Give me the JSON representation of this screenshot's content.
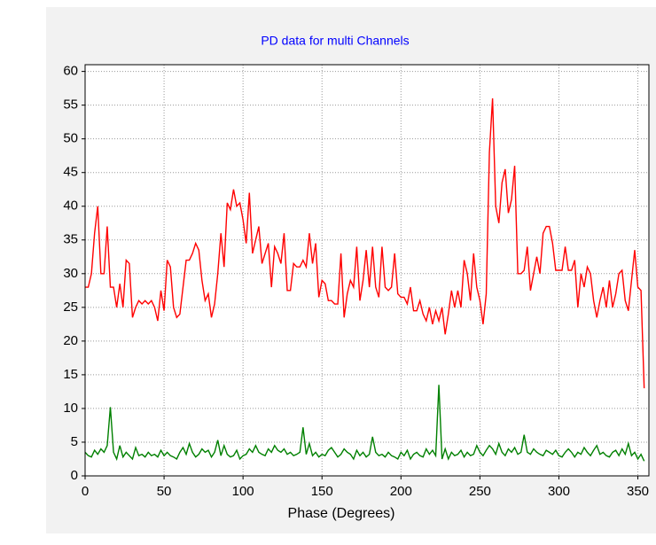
{
  "chart_data": {
    "type": "line",
    "title": "PD data for multi Channels",
    "x_label": "Phase (Degrees)",
    "x": [
      0,
      2,
      4,
      6,
      8,
      10,
      12,
      14,
      16,
      18,
      20,
      22,
      24,
      26,
      28,
      30,
      32,
      34,
      36,
      38,
      40,
      42,
      44,
      46,
      48,
      50,
      52,
      54,
      56,
      58,
      60,
      62,
      64,
      66,
      68,
      70,
      72,
      74,
      76,
      78,
      80,
      82,
      84,
      86,
      88,
      90,
      92,
      94,
      96,
      98,
      100,
      102,
      104,
      106,
      108,
      110,
      112,
      114,
      116,
      118,
      120,
      122,
      124,
      126,
      128,
      130,
      132,
      134,
      136,
      138,
      140,
      142,
      144,
      146,
      148,
      150,
      152,
      154,
      156,
      158,
      160,
      162,
      164,
      166,
      168,
      170,
      172,
      174,
      176,
      178,
      180,
      182,
      184,
      186,
      188,
      190,
      192,
      194,
      196,
      198,
      200,
      202,
      204,
      206,
      208,
      210,
      212,
      214,
      216,
      218,
      220,
      222,
      224,
      226,
      228,
      230,
      232,
      234,
      236,
      238,
      240,
      242,
      244,
      246,
      248,
      250,
      252,
      254,
      256,
      258,
      260,
      262,
      264,
      266,
      268,
      270,
      272,
      274,
      276,
      278,
      280,
      282,
      284,
      286,
      288,
      290,
      292,
      294,
      296,
      298,
      300,
      302,
      304,
      306,
      308,
      310,
      312,
      314,
      316,
      318,
      320,
      322,
      324,
      326,
      328,
      330,
      332,
      334,
      336,
      338,
      340,
      342,
      344,
      346,
      348,
      350,
      352,
      354
    ],
    "series": [
      {
        "color": "#ff0000",
        "values": [
          28,
          28,
          30,
          36,
          40,
          30,
          30,
          37,
          28,
          28,
          25,
          28.5,
          25,
          32,
          31.5,
          23.5,
          25,
          26,
          25.5,
          26,
          25.5,
          26,
          25,
          23,
          27.5,
          24.5,
          32,
          31,
          25,
          23.5,
          24,
          28,
          32,
          32,
          33,
          34.5,
          33.5,
          29,
          26,
          27,
          23.5,
          25.5,
          30,
          36,
          31,
          40.5,
          39.5,
          42.5,
          40,
          40.5,
          38,
          34.5,
          42,
          33,
          35,
          37,
          31.5,
          33,
          34.5,
          28,
          34,
          33,
          31.5,
          36,
          27.5,
          27.5,
          31.5,
          31,
          31,
          32,
          31,
          36,
          31.5,
          34.5,
          26.5,
          29,
          28.5,
          26,
          26,
          25.5,
          25.5,
          33,
          23.5,
          27,
          29,
          28,
          34,
          26,
          29,
          33.5,
          28,
          34,
          28,
          26.5,
          34,
          28,
          27.5,
          28,
          33,
          27,
          26.5,
          26.5,
          25.5,
          28,
          24.5,
          24.5,
          26,
          24,
          23,
          25,
          22.5,
          24.5,
          23,
          25,
          21,
          24,
          27.5,
          25,
          27.5,
          25,
          32,
          30,
          26,
          33,
          28,
          26,
          22.5,
          27,
          48,
          56,
          40,
          37.5,
          43.5,
          45.5,
          39,
          41,
          46,
          30,
          30,
          30.5,
          34,
          27.5,
          30,
          32.5,
          30,
          36,
          37,
          37,
          34.5,
          30.5,
          30.5,
          30.5,
          34,
          30.5,
          30.5,
          32,
          25,
          30,
          28,
          31,
          30,
          26,
          23.5,
          26,
          28,
          25,
          29,
          25,
          27,
          30,
          30.5,
          26,
          24.5,
          29,
          33.5,
          28,
          27.5,
          13
        ]
      },
      {
        "color": "#008000",
        "values": [
          3.5,
          3,
          2.8,
          3.8,
          3.2,
          4,
          3.5,
          4.5,
          10.2,
          3.5,
          2.5,
          4.5,
          2.8,
          3.5,
          3,
          2.5,
          4.2,
          3,
          3.2,
          2.8,
          3.5,
          3,
          3.2,
          2.8,
          3.8,
          3,
          3.5,
          3,
          2.8,
          2.5,
          3.5,
          4.2,
          3.2,
          4.8,
          3.5,
          2.8,
          3.2,
          4,
          3.5,
          3.8,
          2.8,
          3.5,
          5.3,
          3,
          4.5,
          3.2,
          2.8,
          3,
          3.8,
          2.5,
          3,
          3.2,
          4,
          3.5,
          4.5,
          3.5,
          3.2,
          3,
          4,
          3.5,
          4.5,
          3.8,
          3.5,
          4,
          3.2,
          3.5,
          3,
          3.2,
          3.5,
          7.2,
          3.2,
          4.8,
          3,
          3.5,
          2.8,
          3.2,
          3,
          3.8,
          4.2,
          3.5,
          2.8,
          3.2,
          4,
          3.5,
          3.2,
          2.5,
          3.8,
          3,
          3.5,
          2.8,
          3.2,
          5.8,
          3.5,
          3,
          3.2,
          2.8,
          3.5,
          3,
          2.8,
          2.5,
          3.5,
          3,
          3.8,
          2.5,
          3.2,
          3.5,
          3,
          2.8,
          4,
          3.2,
          3.8,
          3,
          13.5,
          2.5,
          4,
          2.5,
          3.5,
          3,
          3.2,
          3.8,
          2.8,
          3.5,
          3,
          3.2,
          4.5,
          3.5,
          3,
          3.8,
          4.5,
          4,
          3.2,
          4.8,
          3.5,
          3,
          4,
          3.5,
          4.2,
          3.2,
          3.5,
          6.1,
          3.5,
          3.2,
          4,
          3.5,
          3.2,
          3,
          3.8,
          3.5,
          3.2,
          3.8,
          3,
          2.8,
          3.5,
          4,
          3.5,
          2.8,
          3.5,
          3.2,
          4.2,
          3.5,
          3,
          3.8,
          4.5,
          3.2,
          3.5,
          3,
          2.8,
          3.5,
          3.8,
          3,
          4,
          3.2,
          4.8,
          3,
          3.5,
          2.5,
          3.2,
          2.2
        ]
      }
    ],
    "xlim": [
      0,
      357
    ],
    "ylim": [
      0,
      61
    ],
    "xticks": [
      0,
      50,
      100,
      150,
      200,
      250,
      300,
      350
    ],
    "yticks": [
      0,
      5,
      10,
      15,
      20,
      25,
      30,
      35,
      40,
      45,
      50,
      55,
      60
    ],
    "grid": true
  }
}
